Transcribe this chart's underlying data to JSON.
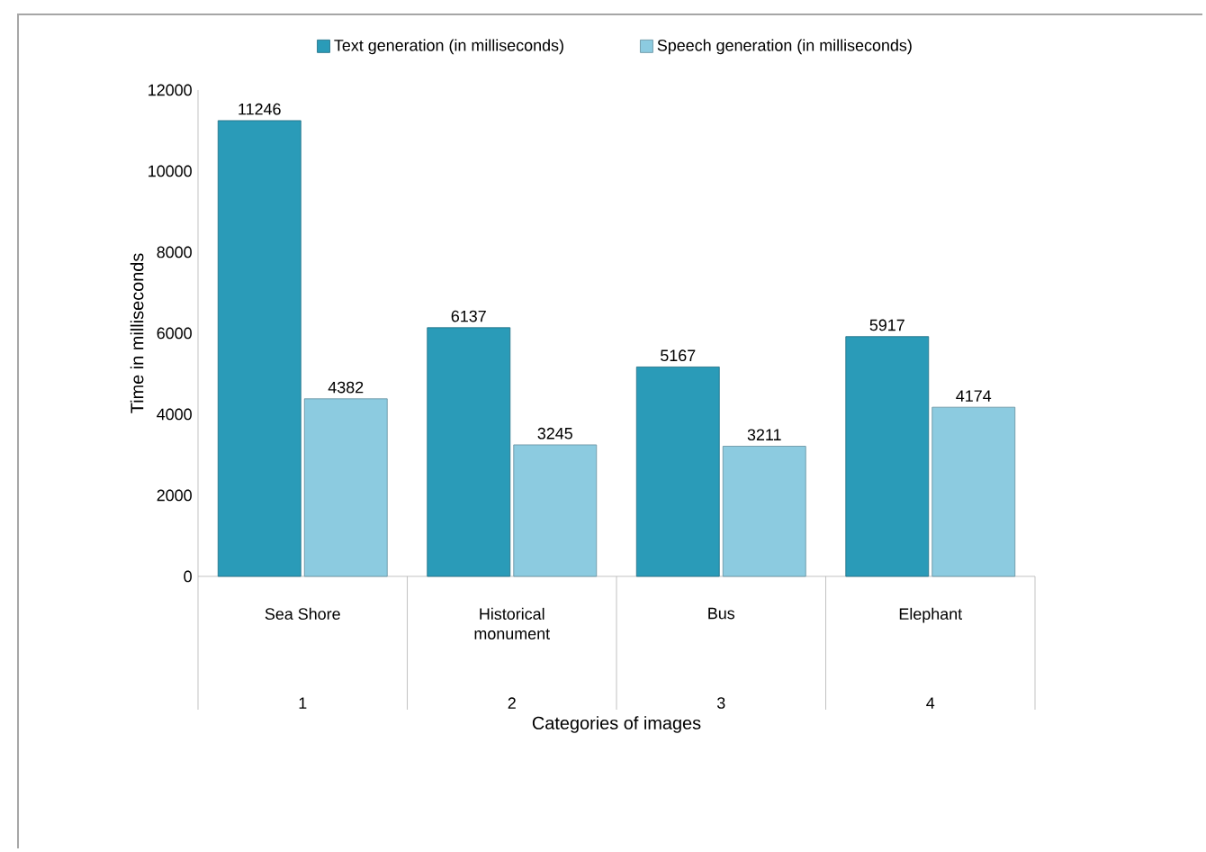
{
  "chart_data": {
    "type": "bar",
    "xlabel": "Categories of images",
    "ylabel": "Time in milliseconds",
    "categories": [
      "Sea Shore",
      "Historical monument",
      "Bus",
      "Elephant"
    ],
    "series": [
      {
        "name": "Text generation  (in milliseconds)",
        "color": "#2a9bb8",
        "values": [
          11246,
          6137,
          5167,
          5917
        ]
      },
      {
        "name": "Speech generation (in milliseconds)",
        "color": "#8ccbe0",
        "values": [
          4382,
          3245,
          3211,
          4174
        ]
      }
    ],
    "annotations": [
      "1",
      "2",
      "3",
      "4"
    ],
    "ylim": [
      0,
      12000
    ],
    "yticks": [
      0,
      2000,
      4000,
      6000,
      8000,
      10000,
      12000
    ],
    "data_labels": true,
    "legend": "top",
    "grid": false
  }
}
